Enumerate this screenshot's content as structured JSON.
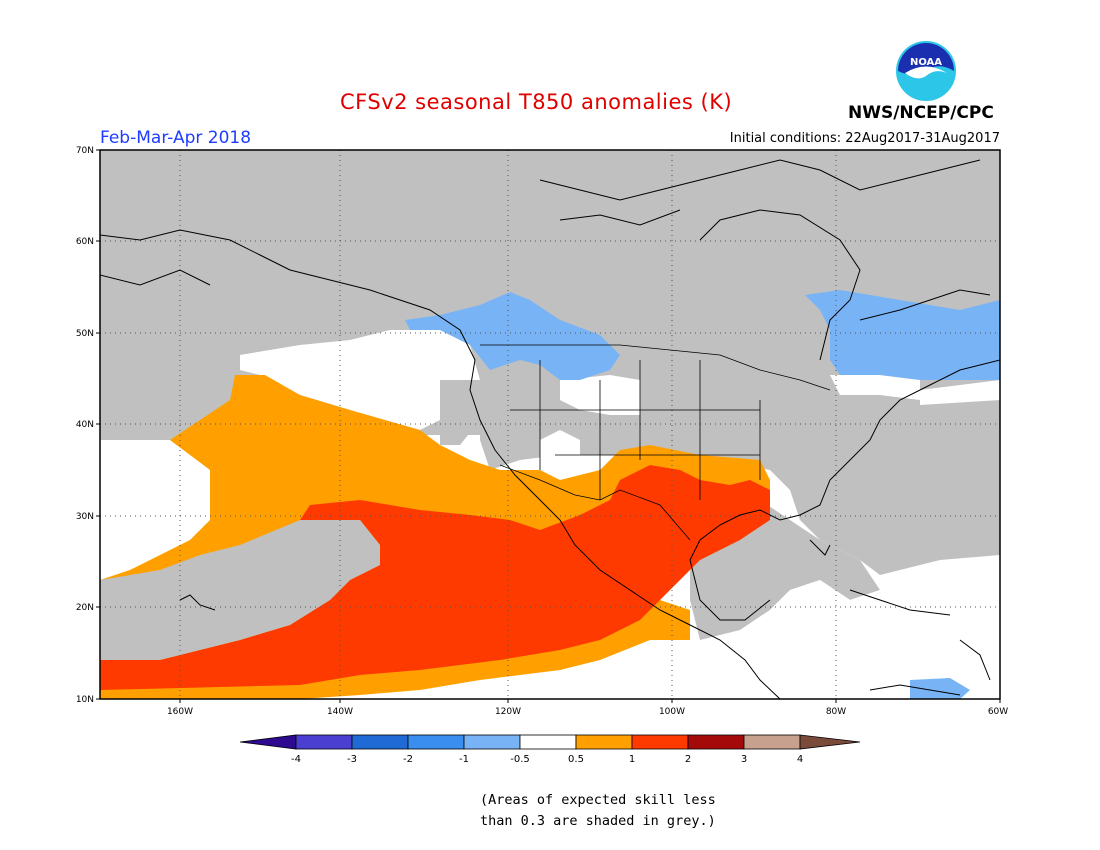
{
  "title": "CFSv2 seasonal T850 anomalies (K)",
  "period": "Feb-Mar-Apr 2018",
  "initial_conditions": "Initial conditions: 22Aug2017-31Aug2017",
  "organization": "NWS/NCEP/CPC",
  "logo_text": "NOAA",
  "lat_labels": [
    "70N",
    "60N",
    "50N",
    "40N",
    "30N",
    "20N",
    "10N"
  ],
  "lon_labels": [
    "160W",
    "140W",
    "120W",
    "100W",
    "80W",
    "60W"
  ],
  "legend": {
    "ticks": [
      "-4",
      "-3",
      "-2",
      "-1",
      "-0.5",
      "0.5",
      "1",
      "2",
      "3",
      "4"
    ],
    "colors": [
      "#2d0a8f",
      "#4a3fd0",
      "#1f6ad4",
      "#3a8ef0",
      "#78b4f5",
      "#ffffff",
      "#ffa000",
      "#ff3a00",
      "#a50a0a",
      "#c7a08e",
      "#7a4a3a"
    ]
  },
  "skill_note": [
    "(Areas of expected skill less",
    "than 0.3 are shaded in grey.)"
  ],
  "colors": {
    "grey": "#c0c0c0",
    "light_blue": "#78b4f5",
    "orange": "#ffa000",
    "red_orange": "#ff3a00",
    "title_red": "#e00000",
    "period_blue": "#1e3cff"
  }
}
